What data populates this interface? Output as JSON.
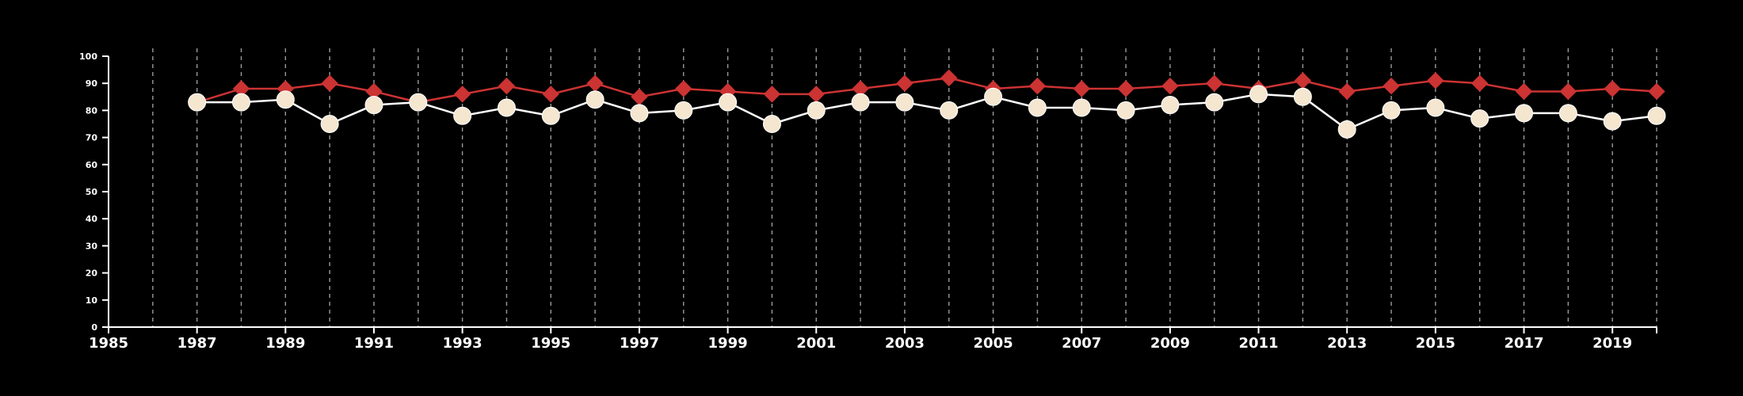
{
  "chart_data": {
    "type": "line",
    "title": "",
    "xlabel": "",
    "ylabel": "",
    "xlim": [
      1985,
      2020
    ],
    "ylim": [
      0,
      100
    ],
    "y_ticks": [
      0,
      10,
      20,
      30,
      40,
      50,
      60,
      70,
      80,
      90,
      100
    ],
    "x_ticks": [
      1985,
      1987,
      1989,
      1991,
      1993,
      1995,
      1997,
      1999,
      2001,
      2003,
      2005,
      2007,
      2009,
      2011,
      2013,
      2015,
      2017,
      2019
    ],
    "x_gridlines": [
      1986,
      1987,
      1988,
      1989,
      1990,
      1991,
      1992,
      1993,
      1994,
      1995,
      1996,
      1997,
      1998,
      1999,
      2000,
      2001,
      2002,
      2003,
      2004,
      2005,
      2006,
      2007,
      2008,
      2009,
      2010,
      2011,
      2012,
      2013,
      2014,
      2015,
      2016,
      2017,
      2018,
      2019,
      2020
    ],
    "grid": "vertical dashed",
    "legend": "none",
    "x": [
      1987,
      1988,
      1989,
      1990,
      1991,
      1992,
      1993,
      1994,
      1995,
      1996,
      1997,
      1998,
      1999,
      2000,
      2001,
      2002,
      2003,
      2004,
      2005,
      2006,
      2007,
      2008,
      2009,
      2010,
      2011,
      2012,
      2013,
      2014,
      2015,
      2016,
      2017,
      2018,
      2019,
      2020
    ],
    "series": [
      {
        "marker": "diamond",
        "color": "#cc3333",
        "values": [
          83,
          88,
          88,
          90,
          87,
          83,
          86,
          89,
          86,
          90,
          85,
          88,
          87,
          86,
          86,
          88,
          90,
          92,
          88,
          89,
          88,
          88,
          89,
          90,
          88,
          91,
          87,
          89,
          91,
          90,
          87,
          87,
          88,
          87
        ]
      },
      {
        "marker": "circle",
        "color": "#f5e6d0",
        "line_color": "#ffffff",
        "values": [
          83,
          83,
          84,
          75,
          82,
          83,
          78,
          81,
          78,
          84,
          79,
          80,
          83,
          75,
          80,
          83,
          83,
          80,
          85,
          81,
          81,
          80,
          82,
          83,
          86,
          85,
          73,
          80,
          81,
          77,
          79,
          79,
          76,
          78
        ]
      }
    ]
  }
}
